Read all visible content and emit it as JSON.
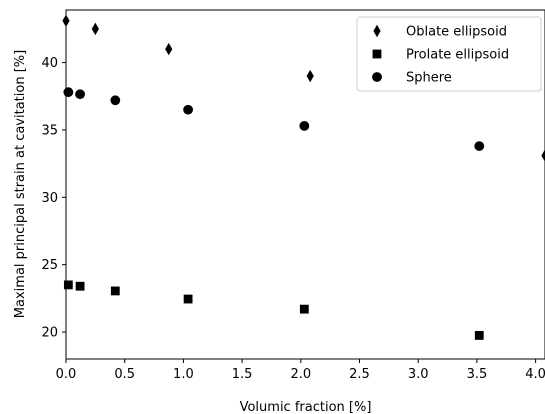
{
  "chart_data": {
    "type": "scatter",
    "title": "",
    "xlabel": "Volumic fraction [%]",
    "ylabel": "Maximal principal strain at cavitation [%]",
    "xlim": [
      0.0,
      4.08
    ],
    "ylim": [
      18.0,
      43.9
    ],
    "xticks": [
      0.0,
      0.5,
      1.0,
      1.5,
      2.0,
      2.5,
      3.0,
      3.5,
      4.0
    ],
    "xtick_labels": [
      "0.0",
      "0.5",
      "1.0",
      "1.5",
      "2.0",
      "2.5",
      "3.0",
      "3.5",
      "4.0"
    ],
    "yticks": [
      20,
      25,
      30,
      35,
      40
    ],
    "ytick_labels": [
      "20",
      "25",
      "30",
      "35",
      "40"
    ],
    "grid": false,
    "legend_position": "top-right",
    "series": [
      {
        "name": "Oblate ellipsoid",
        "marker": "diamond",
        "color": "#000000",
        "x": [
          0.0,
          0.25,
          0.875,
          2.08,
          4.08
        ],
        "y": [
          43.1,
          42.5,
          41.0,
          39.0,
          33.1
        ]
      },
      {
        "name": "Prolate ellipsoid",
        "marker": "square",
        "color": "#000000",
        "x": [
          0.02,
          0.12,
          0.42,
          1.04,
          2.03,
          3.52
        ],
        "y": [
          23.5,
          23.4,
          23.05,
          22.45,
          21.7,
          19.75
        ]
      },
      {
        "name": "Sphere",
        "marker": "circle",
        "color": "#000000",
        "x": [
          0.02,
          0.12,
          0.42,
          1.04,
          2.03,
          3.52
        ],
        "y": [
          37.8,
          37.65,
          37.2,
          36.5,
          35.3,
          33.8
        ]
      }
    ]
  }
}
